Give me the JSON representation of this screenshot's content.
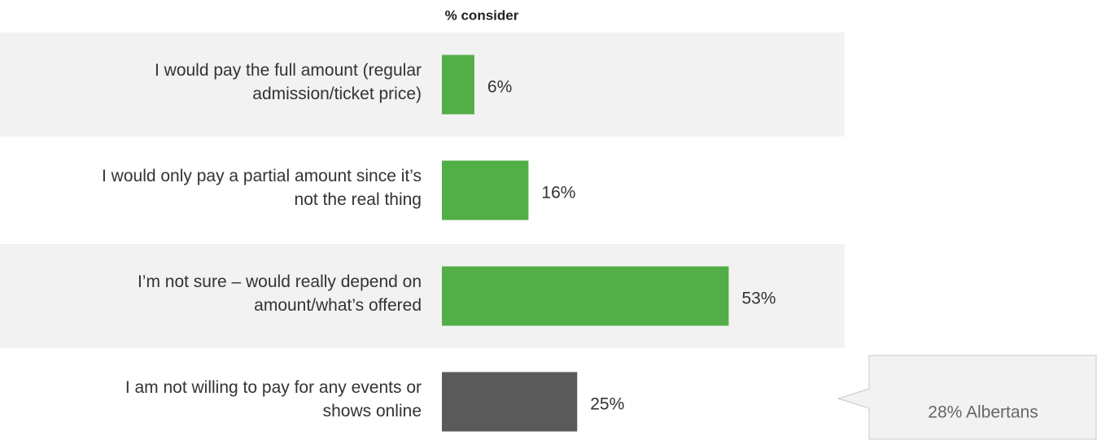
{
  "chart_data": {
    "type": "hbar",
    "title": "% consider",
    "categories": [
      [
        "I would pay the full amount (regular",
        "admission/ticket price)"
      ],
      [
        "I would only pay a partial amount since it’s",
        "not the real thing"
      ],
      [
        "I’m not sure – would really depend on",
        "amount/what’s offered"
      ],
      [
        "I am not willing to pay for any events or",
        "shows online"
      ]
    ],
    "values": [
      6,
      16,
      53,
      25
    ],
    "value_labels": [
      "6%",
      "16%",
      "53%",
      "25%"
    ],
    "colors": [
      "#52ae46",
      "#52ae46",
      "#52ae46",
      "#5a5a5a"
    ],
    "xlim": [
      0,
      100
    ],
    "annotation": "28% Albertans"
  }
}
